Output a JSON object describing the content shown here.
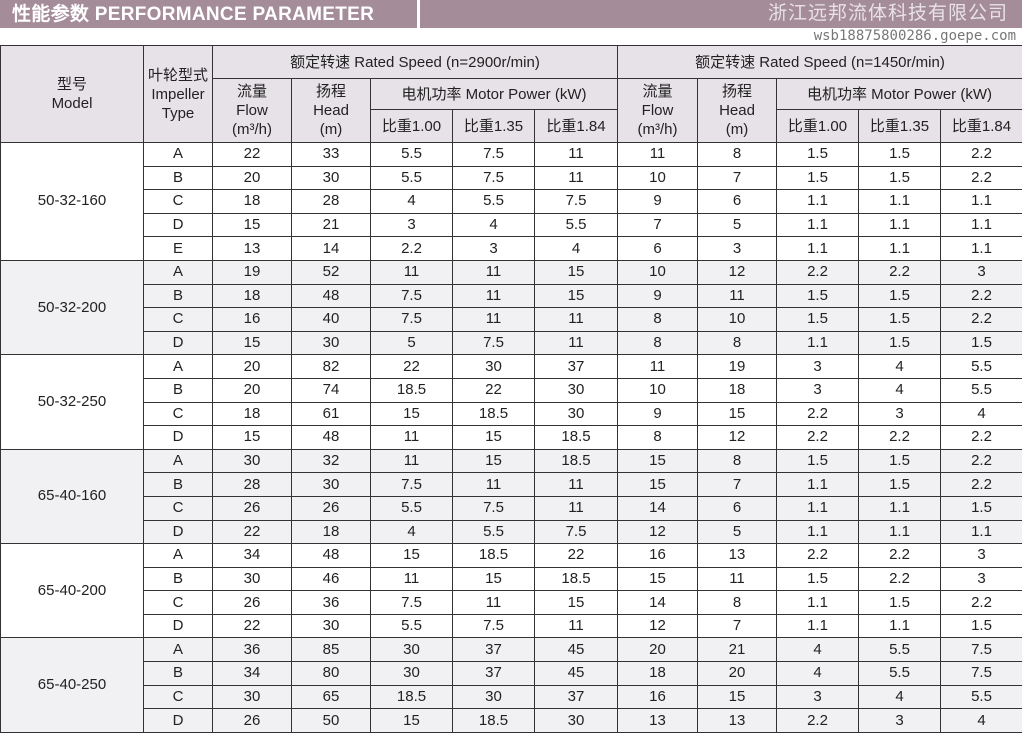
{
  "title": "性能参数  PERFORMANCE PARAMETER",
  "header": {
    "model": "型号",
    "model_en": "Model",
    "impeller": "叶轮型式",
    "impeller_en": "Impeller Type",
    "speed_2900": "额定转速  Rated Speed  (n=2900r/min)",
    "speed_1450": "额定转速  Rated Speed  (n=1450r/min)",
    "flow": "流量",
    "flow_en": "Flow",
    "flow_unit": "(m³/h)",
    "head": "扬程",
    "head_en": "Head",
    "head_unit": "(m)",
    "power": "电机功率  Motor Power (kW)",
    "sg": [
      "比重1.00",
      "比重1.35",
      "比重1.84"
    ]
  },
  "groups": [
    {
      "model": "50-32-160",
      "rows": [
        [
          "A",
          "22",
          "33",
          "5.5",
          "7.5",
          "11",
          "11",
          "8",
          "1.5",
          "1.5",
          "2.2"
        ],
        [
          "B",
          "20",
          "30",
          "5.5",
          "7.5",
          "11",
          "10",
          "7",
          "1.5",
          "1.5",
          "2.2"
        ],
        [
          "C",
          "18",
          "28",
          "4",
          "5.5",
          "7.5",
          "9",
          "6",
          "1.1",
          "1.1",
          "1.1"
        ],
        [
          "D",
          "15",
          "21",
          "3",
          "4",
          "5.5",
          "7",
          "5",
          "1.1",
          "1.1",
          "1.1"
        ],
        [
          "E",
          "13",
          "14",
          "2.2",
          "3",
          "4",
          "6",
          "3",
          "1.1",
          "1.1",
          "1.1"
        ]
      ]
    },
    {
      "model": "50-32-200",
      "rows": [
        [
          "A",
          "19",
          "52",
          "11",
          "11",
          "15",
          "10",
          "12",
          "2.2",
          "2.2",
          "3"
        ],
        [
          "B",
          "18",
          "48",
          "7.5",
          "11",
          "15",
          "9",
          "11",
          "1.5",
          "1.5",
          "2.2"
        ],
        [
          "C",
          "16",
          "40",
          "7.5",
          "11",
          "11",
          "8",
          "10",
          "1.5",
          "1.5",
          "2.2"
        ],
        [
          "D",
          "15",
          "30",
          "5",
          "7.5",
          "11",
          "8",
          "8",
          "1.1",
          "1.5",
          "1.5"
        ]
      ]
    },
    {
      "model": "50-32-250",
      "rows": [
        [
          "A",
          "20",
          "82",
          "22",
          "30",
          "37",
          "11",
          "19",
          "3",
          "4",
          "5.5"
        ],
        [
          "B",
          "20",
          "74",
          "18.5",
          "22",
          "30",
          "10",
          "18",
          "3",
          "4",
          "5.5"
        ],
        [
          "C",
          "18",
          "61",
          "15",
          "18.5",
          "30",
          "9",
          "15",
          "2.2",
          "3",
          "4"
        ],
        [
          "D",
          "15",
          "48",
          "11",
          "15",
          "18.5",
          "8",
          "12",
          "2.2",
          "2.2",
          "2.2"
        ]
      ]
    },
    {
      "model": "65-40-160",
      "rows": [
        [
          "A",
          "30",
          "32",
          "11",
          "15",
          "18.5",
          "15",
          "8",
          "1.5",
          "1.5",
          "2.2"
        ],
        [
          "B",
          "28",
          "30",
          "7.5",
          "11",
          "11",
          "15",
          "7",
          "1.1",
          "1.5",
          "2.2"
        ],
        [
          "C",
          "26",
          "26",
          "5.5",
          "7.5",
          "11",
          "14",
          "6",
          "1.1",
          "1.1",
          "1.5"
        ],
        [
          "D",
          "22",
          "18",
          "4",
          "5.5",
          "7.5",
          "12",
          "5",
          "1.1",
          "1.1",
          "1.1"
        ]
      ]
    },
    {
      "model": "65-40-200",
      "rows": [
        [
          "A",
          "34",
          "48",
          "15",
          "18.5",
          "22",
          "16",
          "13",
          "2.2",
          "2.2",
          "3"
        ],
        [
          "B",
          "30",
          "46",
          "11",
          "15",
          "18.5",
          "15",
          "11",
          "1.5",
          "2.2",
          "3"
        ],
        [
          "C",
          "26",
          "36",
          "7.5",
          "11",
          "15",
          "14",
          "8",
          "1.1",
          "1.5",
          "2.2"
        ],
        [
          "D",
          "22",
          "30",
          "5.5",
          "7.5",
          "11",
          "12",
          "7",
          "1.1",
          "1.1",
          "1.5"
        ]
      ]
    },
    {
      "model": "65-40-250",
      "rows": [
        [
          "A",
          "36",
          "85",
          "30",
          "37",
          "45",
          "20",
          "21",
          "4",
          "5.5",
          "7.5"
        ],
        [
          "B",
          "34",
          "80",
          "30",
          "37",
          "45",
          "18",
          "20",
          "4",
          "5.5",
          "7.5"
        ],
        [
          "C",
          "30",
          "65",
          "18.5",
          "30",
          "37",
          "16",
          "15",
          "3",
          "4",
          "5.5"
        ],
        [
          "D",
          "26",
          "50",
          "15",
          "18.5",
          "30",
          "13",
          "13",
          "2.2",
          "3",
          "4"
        ]
      ]
    }
  ],
  "watermark": "浙江远邦流体科技有限公司",
  "watermark2": "wsb18875800286.goepe.com"
}
